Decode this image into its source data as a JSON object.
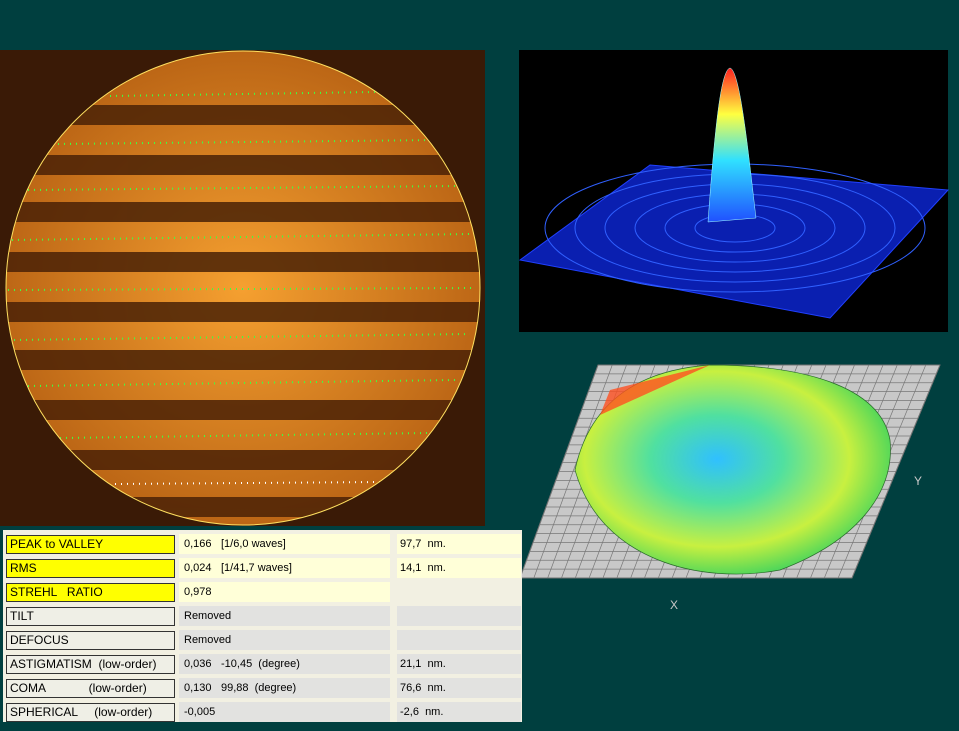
{
  "results": {
    "rows": [
      {
        "label": "PEAK to VALLEY",
        "value": "0,166",
        "note": "[1/6,0 waves]",
        "nm": "97,7  nm."
      },
      {
        "label": "RMS",
        "value": "0,024",
        "note": "[1/41,7 waves]",
        "nm": "14,1  nm."
      },
      {
        "label": "STREHL   RATIO",
        "value": "0,978"
      },
      {
        "label": "TILT",
        "value": "Removed"
      },
      {
        "label": "DEFOCUS",
        "value": "Removed"
      },
      {
        "label": "ASTIGMATISM  (low-order)",
        "value": "0,036",
        "note": "-10,45  (degree)",
        "nm": "21,1  nm."
      },
      {
        "label": "COMA             (low-order)",
        "value": "0,130",
        "note": "99,88  (degree)",
        "nm": "76,6  nm."
      },
      {
        "label": "SPHERICAL     (low-order)",
        "value": "-0,005",
        "nm": "-2,6  nm."
      }
    ]
  },
  "surface_plot": {
    "axis_y": "Y",
    "axis_x": "X"
  }
}
